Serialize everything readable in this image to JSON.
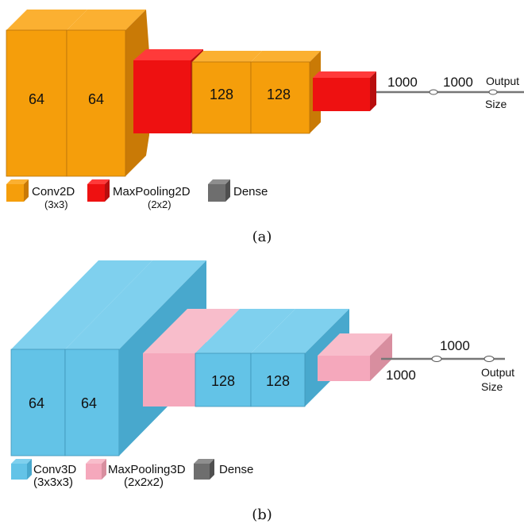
{
  "colors": {
    "conv2d": "#F59E0B",
    "conv2d_dark": "#C97A06",
    "conv2d_light": "#FBB031",
    "maxpool2d": "#EE1111",
    "maxpool2d_dark": "#B80E0E",
    "maxpool2d_light": "#FF3A3A",
    "conv3d": "#63C3E7",
    "conv3d_dark": "#48A8CD",
    "conv3d_light": "#7FD0EE",
    "maxpool3d": "#F5A8BC",
    "maxpool3d_dark": "#D88E9F",
    "maxpool3d_light": "#F8BDCB",
    "dense": "#6E6E6E",
    "dense_dark": "#4F4F4F",
    "dense_light": "#8E8E8E",
    "line": "#777777"
  },
  "diagram_a": {
    "caption": "(a)",
    "block_labels": [
      "64",
      "64",
      "128",
      "128"
    ],
    "dense_labels": [
      "1000",
      "1000"
    ],
    "output_label_line1": "Output",
    "output_label_line2": "Size",
    "legend": [
      {
        "name": "Conv2D",
        "sub": "(3x3)"
      },
      {
        "name": "MaxPooling2D",
        "sub": "(2x2)"
      },
      {
        "name": "Dense",
        "sub": ""
      }
    ]
  },
  "diagram_b": {
    "caption": "(b)",
    "block_labels": [
      "64",
      "64",
      "128",
      "128"
    ],
    "dense_labels": [
      "1000",
      "1000"
    ],
    "output_label_line1": "Output",
    "output_label_line2": "Size",
    "legend": [
      {
        "name": "Conv3D",
        "sub": "(3x3x3)"
      },
      {
        "name": "MaxPooling3D",
        "sub": "(2x2x2)"
      },
      {
        "name": "Dense",
        "sub": ""
      }
    ]
  }
}
